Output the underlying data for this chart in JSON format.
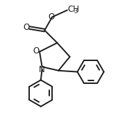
{
  "background_color": "#ffffff",
  "line_color": "#1a1a1a",
  "line_width": 1.4,
  "font_size": 8.5,
  "figsize": [
    1.83,
    1.99
  ],
  "dpi": 100,
  "xlim": [
    0,
    10
  ],
  "ylim": [
    0,
    10.85
  ]
}
